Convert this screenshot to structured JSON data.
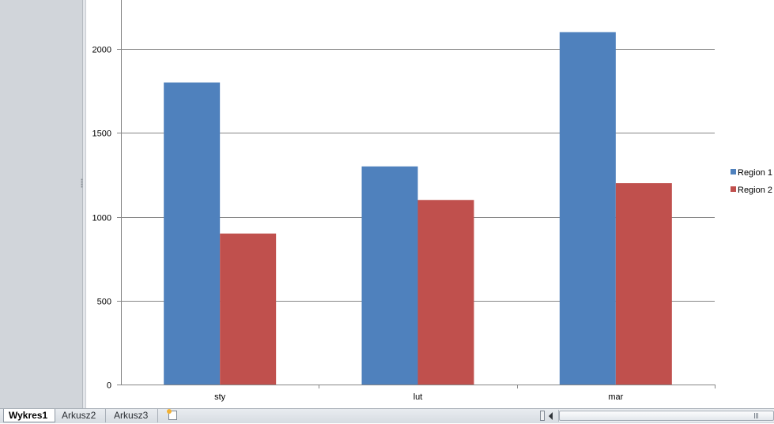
{
  "window": {
    "sheet_tabs": [
      {
        "label": "Wykres1",
        "active": true
      },
      {
        "label": "Arkusz2",
        "active": false
      },
      {
        "label": "Arkusz3",
        "active": false
      }
    ],
    "new_sheet_icon": "insert-worksheet-icon"
  },
  "colors": {
    "region1": "#4f81bd",
    "region2": "#c0504d",
    "gridline": "#868686"
  },
  "chart_data": {
    "type": "bar",
    "categories": [
      "sty",
      "lut",
      "mar"
    ],
    "series": [
      {
        "name": "Region 1",
        "values": [
          1800,
          1300,
          2100
        ]
      },
      {
        "name": "Region 2",
        "values": [
          900,
          1100,
          1200
        ]
      }
    ],
    "y_ticks": [
      0,
      500,
      1000,
      1500,
      2000
    ],
    "ylim": [
      0,
      2000
    ],
    "grid": true,
    "legend_position": "right"
  }
}
